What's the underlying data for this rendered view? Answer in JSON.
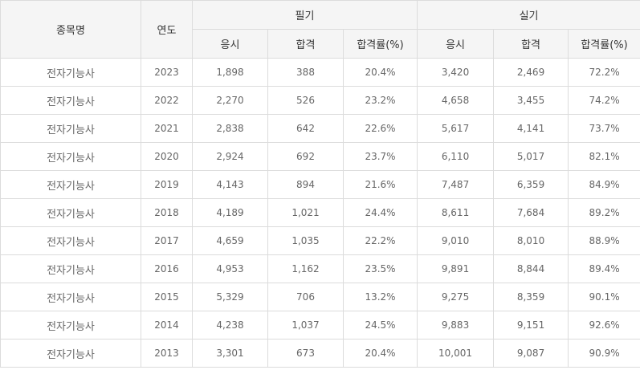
{
  "table": {
    "headers": {
      "name": "종목명",
      "year": "연도",
      "written": "필기",
      "practical": "실기",
      "applicants": "응시",
      "passed": "합격",
      "pass_rate": "합격률(%)"
    },
    "rows": [
      {
        "name": "전자기능사",
        "year": "2023",
        "w_applicants": "1,898",
        "w_passed": "388",
        "w_rate": "20.4%",
        "p_applicants": "3,420",
        "p_passed": "2,469",
        "p_rate": "72.2%"
      },
      {
        "name": "전자기능사",
        "year": "2022",
        "w_applicants": "2,270",
        "w_passed": "526",
        "w_rate": "23.2%",
        "p_applicants": "4,658",
        "p_passed": "3,455",
        "p_rate": "74.2%"
      },
      {
        "name": "전자기능사",
        "year": "2021",
        "w_applicants": "2,838",
        "w_passed": "642",
        "w_rate": "22.6%",
        "p_applicants": "5,617",
        "p_passed": "4,141",
        "p_rate": "73.7%"
      },
      {
        "name": "전자기능사",
        "year": "2020",
        "w_applicants": "2,924",
        "w_passed": "692",
        "w_rate": "23.7%",
        "p_applicants": "6,110",
        "p_passed": "5,017",
        "p_rate": "82.1%"
      },
      {
        "name": "전자기능사",
        "year": "2019",
        "w_applicants": "4,143",
        "w_passed": "894",
        "w_rate": "21.6%",
        "p_applicants": "7,487",
        "p_passed": "6,359",
        "p_rate": "84.9%"
      },
      {
        "name": "전자기능사",
        "year": "2018",
        "w_applicants": "4,189",
        "w_passed": "1,021",
        "w_rate": "24.4%",
        "p_applicants": "8,611",
        "p_passed": "7,684",
        "p_rate": "89.2%"
      },
      {
        "name": "전자기능사",
        "year": "2017",
        "w_applicants": "4,659",
        "w_passed": "1,035",
        "w_rate": "22.2%",
        "p_applicants": "9,010",
        "p_passed": "8,010",
        "p_rate": "88.9%"
      },
      {
        "name": "전자기능사",
        "year": "2016",
        "w_applicants": "4,953",
        "w_passed": "1,162",
        "w_rate": "23.5%",
        "p_applicants": "9,891",
        "p_passed": "8,844",
        "p_rate": "89.4%"
      },
      {
        "name": "전자기능사",
        "year": "2015",
        "w_applicants": "5,329",
        "w_passed": "706",
        "w_rate": "13.2%",
        "p_applicants": "9,275",
        "p_passed": "8,359",
        "p_rate": "90.1%"
      },
      {
        "name": "전자기능사",
        "year": "2014",
        "w_applicants": "4,238",
        "w_passed": "1,037",
        "w_rate": "24.5%",
        "p_applicants": "9,883",
        "p_passed": "9,151",
        "p_rate": "92.6%"
      },
      {
        "name": "전자기능사",
        "year": "2013",
        "w_applicants": "3,301",
        "w_passed": "673",
        "w_rate": "20.4%",
        "p_applicants": "10,001",
        "p_passed": "9,087",
        "p_rate": "90.9%"
      }
    ]
  }
}
